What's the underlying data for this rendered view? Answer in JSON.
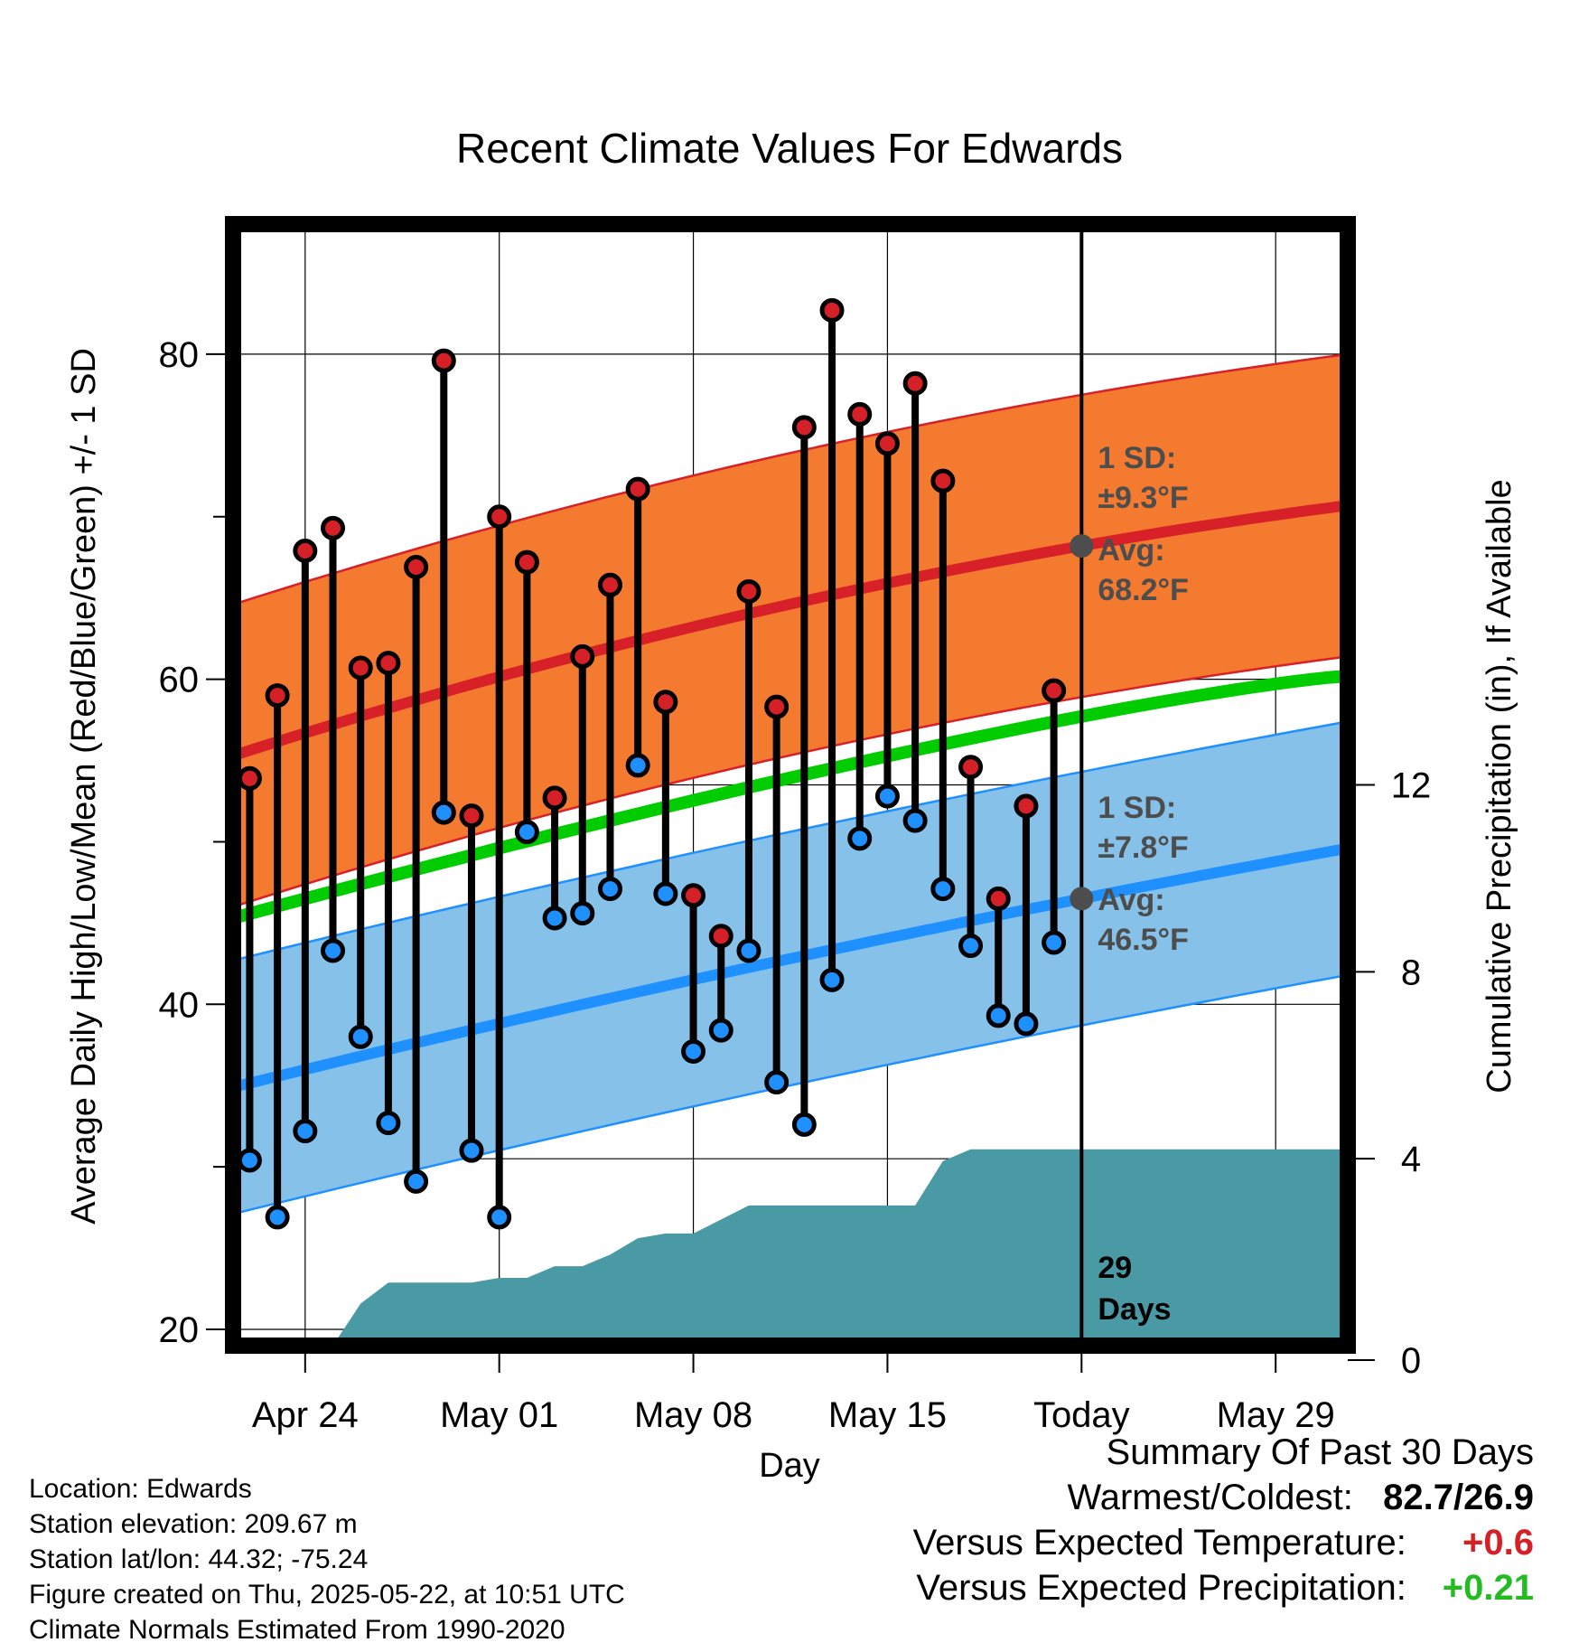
{
  "chart_data": {
    "type": "line",
    "title": "Recent Climate Values For Edwards",
    "xlabel": "Day",
    "ylabel": "Average Daily High/Low/Mean (Red/Blue/Green) +/- 1 SD",
    "y2label": "Cumulative Precipitation (in), If Available",
    "ylim": [
      19,
      88
    ],
    "y2lim": [
      0,
      24
    ],
    "xlim": [
      -2.6,
      37.6
    ],
    "x_tick_positions": [
      0,
      7,
      14,
      21,
      28,
      35
    ],
    "x_tick_labels": [
      "Apr 24",
      "May 01",
      "May 08",
      "May 15",
      "Today",
      "May 29"
    ],
    "y_ticks": [
      20,
      40,
      60,
      80
    ],
    "y_minor_ticks": [
      30,
      50,
      70
    ],
    "y2_ticks": [
      0,
      4,
      8,
      12
    ],
    "today_index": 28,
    "daily_high": [
      53.9,
      59.0,
      67.9,
      69.3,
      60.7,
      61.0,
      66.9,
      79.6,
      51.6,
      70.0,
      67.2,
      52.7,
      61.4,
      65.8,
      71.7,
      58.6,
      46.7,
      44.2,
      65.4,
      58.3,
      75.5,
      82.7,
      76.3,
      74.5,
      78.2,
      72.2,
      54.6,
      46.5,
      52.2,
      59.3
    ],
    "daily_low": [
      30.4,
      26.9,
      32.2,
      43.3,
      38.0,
      32.7,
      29.1,
      51.8,
      31.0,
      26.9,
      50.6,
      45.3,
      45.6,
      47.1,
      54.7,
      46.8,
      37.1,
      38.4,
      43.3,
      35.2,
      32.6,
      41.5,
      50.2,
      52.8,
      51.3,
      47.1,
      43.6,
      39.3,
      38.8,
      43.8
    ],
    "normal_high": {
      "start": 55.3,
      "today": 68.2,
      "end": 70.7
    },
    "normal_low": {
      "start": 34.9,
      "today": 46.5,
      "end": 49.6
    },
    "normal_mean": {
      "start": 45.3,
      "end": 60.2
    },
    "high_sd": 9.3,
    "low_sd": 7.8,
    "cumulative_precip": [
      0.0,
      0.0,
      0.0,
      0.0,
      0.9,
      1.35,
      1.35,
      1.35,
      1.35,
      1.45,
      1.45,
      1.7,
      1.7,
      1.95,
      2.3,
      2.4,
      2.4,
      2.7,
      3.0,
      3.0,
      3.0,
      3.0,
      3.0,
      3.0,
      3.0,
      3.95,
      4.2,
      4.2,
      4.2,
      4.2,
      4.2,
      4.2,
      4.2,
      4.2,
      4.2,
      4.2,
      4.2,
      4.2
    ],
    "annotations": {
      "high_sd_label": "1 SD:",
      "high_sd_value": "±9.3°F",
      "high_avg_label": "Avg:",
      "high_avg_value": "68.2°F",
      "low_sd_label": "1 SD:",
      "low_sd_value": "±7.8°F",
      "low_avg_label": "Avg:",
      "low_avg_value": "46.5°F",
      "precip_days_number": "29",
      "precip_days_unit": "Days"
    },
    "grid": true,
    "colors": {
      "high_band": "#f47a30",
      "high_line": "#d72027",
      "low_band": "#85c1e9",
      "low_line": "#1e90ff",
      "mean_line": "#00cc00",
      "precip_fill": "#4a9aa5",
      "high_marker": "#d42026",
      "low_marker": "#1e90ff",
      "annotation": "#4d4d4d"
    }
  },
  "footer": {
    "location": "Location: Edwards",
    "elevation": "Station elevation: 209.67 m",
    "latlon": "Station lat/lon: 44.32; -75.24",
    "created": "Figure created on Thu, 2025-05-22, at 10:51 UTC",
    "normals": "Climate Normals Estimated From 1990-2020"
  },
  "summary": {
    "title": "Summary Of Past 30 Days",
    "warmest_coldest_label": "Warmest/Coldest:",
    "warmest_coldest_value": "82.7/26.9",
    "temp_label": "Versus Expected Temperature:",
    "temp_value": "+0.6",
    "temp_color": "#d42026",
    "precip_label": "Versus Expected Precipitation:",
    "precip_value": "+0.21",
    "precip_color": "#22bb22"
  }
}
